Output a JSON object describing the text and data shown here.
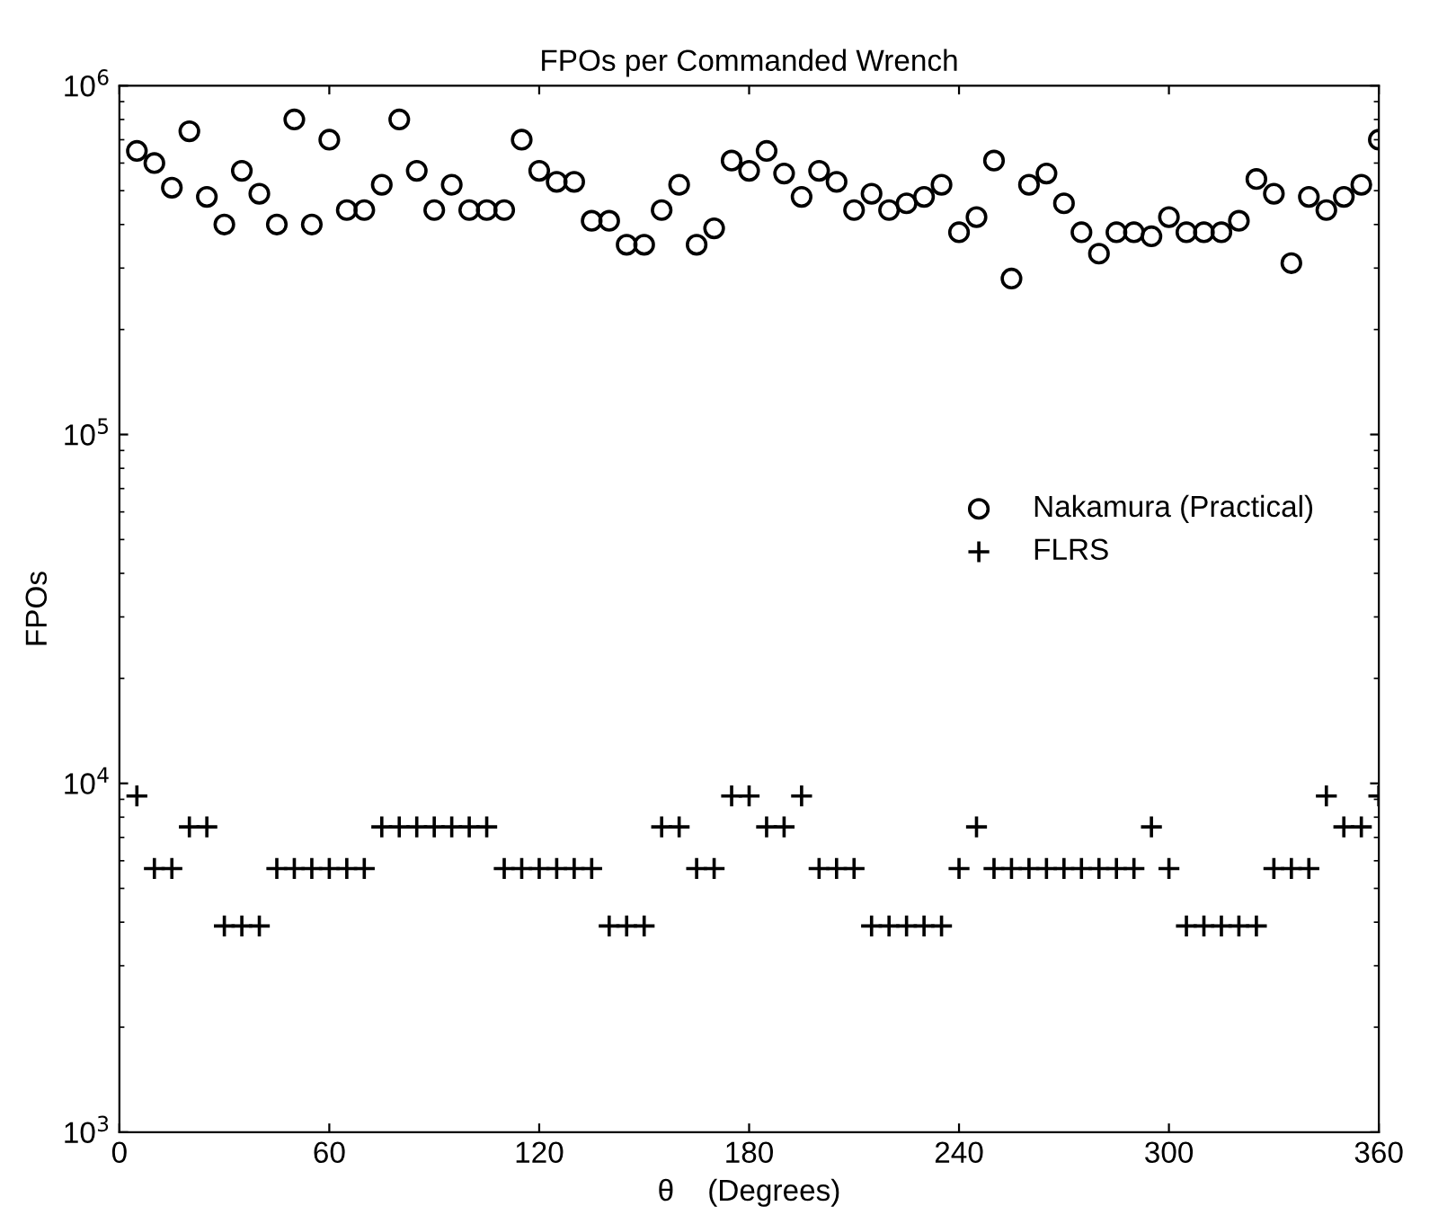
{
  "chart_data": {
    "type": "scatter",
    "title": "FPOs per Commanded Wrench",
    "xlabel": "θ    (Degrees)",
    "ylabel": "FPOs",
    "x": [
      5,
      10,
      15,
      20,
      25,
      30,
      35,
      40,
      45,
      50,
      55,
      60,
      65,
      70,
      75,
      80,
      85,
      90,
      95,
      100,
      105,
      110,
      115,
      120,
      125,
      130,
      135,
      140,
      145,
      150,
      155,
      160,
      165,
      170,
      175,
      180,
      185,
      190,
      195,
      200,
      205,
      210,
      215,
      220,
      225,
      230,
      235,
      240,
      245,
      250,
      255,
      260,
      265,
      270,
      275,
      280,
      285,
      290,
      295,
      300,
      305,
      310,
      315,
      320,
      325,
      330,
      335,
      340,
      345,
      350,
      355,
      360
    ],
    "series": [
      {
        "name": "Nakamura (Practical)",
        "color": "#000000",
        "marker": "circle",
        "values": [
          650000,
          600000,
          510000,
          740000,
          480000,
          400000,
          570000,
          490000,
          400000,
          800000,
          400000,
          700000,
          440000,
          440000,
          520000,
          800000,
          570000,
          440000,
          520000,
          440000,
          440000,
          440000,
          700000,
          570000,
          530000,
          530000,
          410000,
          410000,
          350000,
          350000,
          440000,
          520000,
          350000,
          390000,
          610000,
          570000,
          650000,
          560000,
          480000,
          570000,
          530000,
          440000,
          490000,
          440000,
          460000,
          480000,
          520000,
          380000,
          420000,
          610000,
          280000,
          520000,
          560000,
          460000,
          380000,
          330000,
          380000,
          380000,
          370000,
          420000,
          380000,
          380000,
          380000,
          410000,
          540000,
          490000,
          310000,
          480000,
          440000,
          480000,
          520000,
          700000
        ]
      },
      {
        "name": "FLRS",
        "color": "#000000",
        "marker": "cross",
        "values": [
          9200,
          5700,
          5700,
          7500,
          7500,
          3900,
          3900,
          3900,
          5700,
          5700,
          5700,
          5700,
          5700,
          5700,
          7500,
          7500,
          7500,
          7500,
          7500,
          7500,
          7500,
          5700,
          5700,
          5700,
          5700,
          5700,
          5700,
          3900,
          3900,
          3900,
          7500,
          7500,
          5700,
          5700,
          9200,
          9200,
          7500,
          7500,
          9200,
          5700,
          5700,
          5700,
          3900,
          3900,
          3900,
          3900,
          3900,
          5700,
          7500,
          5700,
          5700,
          5700,
          5700,
          5700,
          5700,
          5700,
          5700,
          5700,
          7500,
          5700,
          3900,
          3900,
          3900,
          3900,
          3900,
          5700,
          5700,
          5700,
          9200,
          7500,
          7500,
          9200
        ]
      }
    ],
    "log": "y",
    "xlim": [
      0,
      360
    ],
    "xticks": [
      0,
      60,
      120,
      180,
      240,
      300,
      360
    ],
    "ylim": [
      1000,
      1000000
    ],
    "yticks": [
      {
        "value": 1000,
        "label": "10$^{3}$"
      },
      {
        "value": 10000,
        "label": "10$^{4}$"
      },
      {
        "value": 100000,
        "label": "10$^{5}$"
      },
      {
        "value": 1000000,
        "label": "10$^{6}$"
      }
    ],
    "legend": "center right",
    "grid": false
  }
}
